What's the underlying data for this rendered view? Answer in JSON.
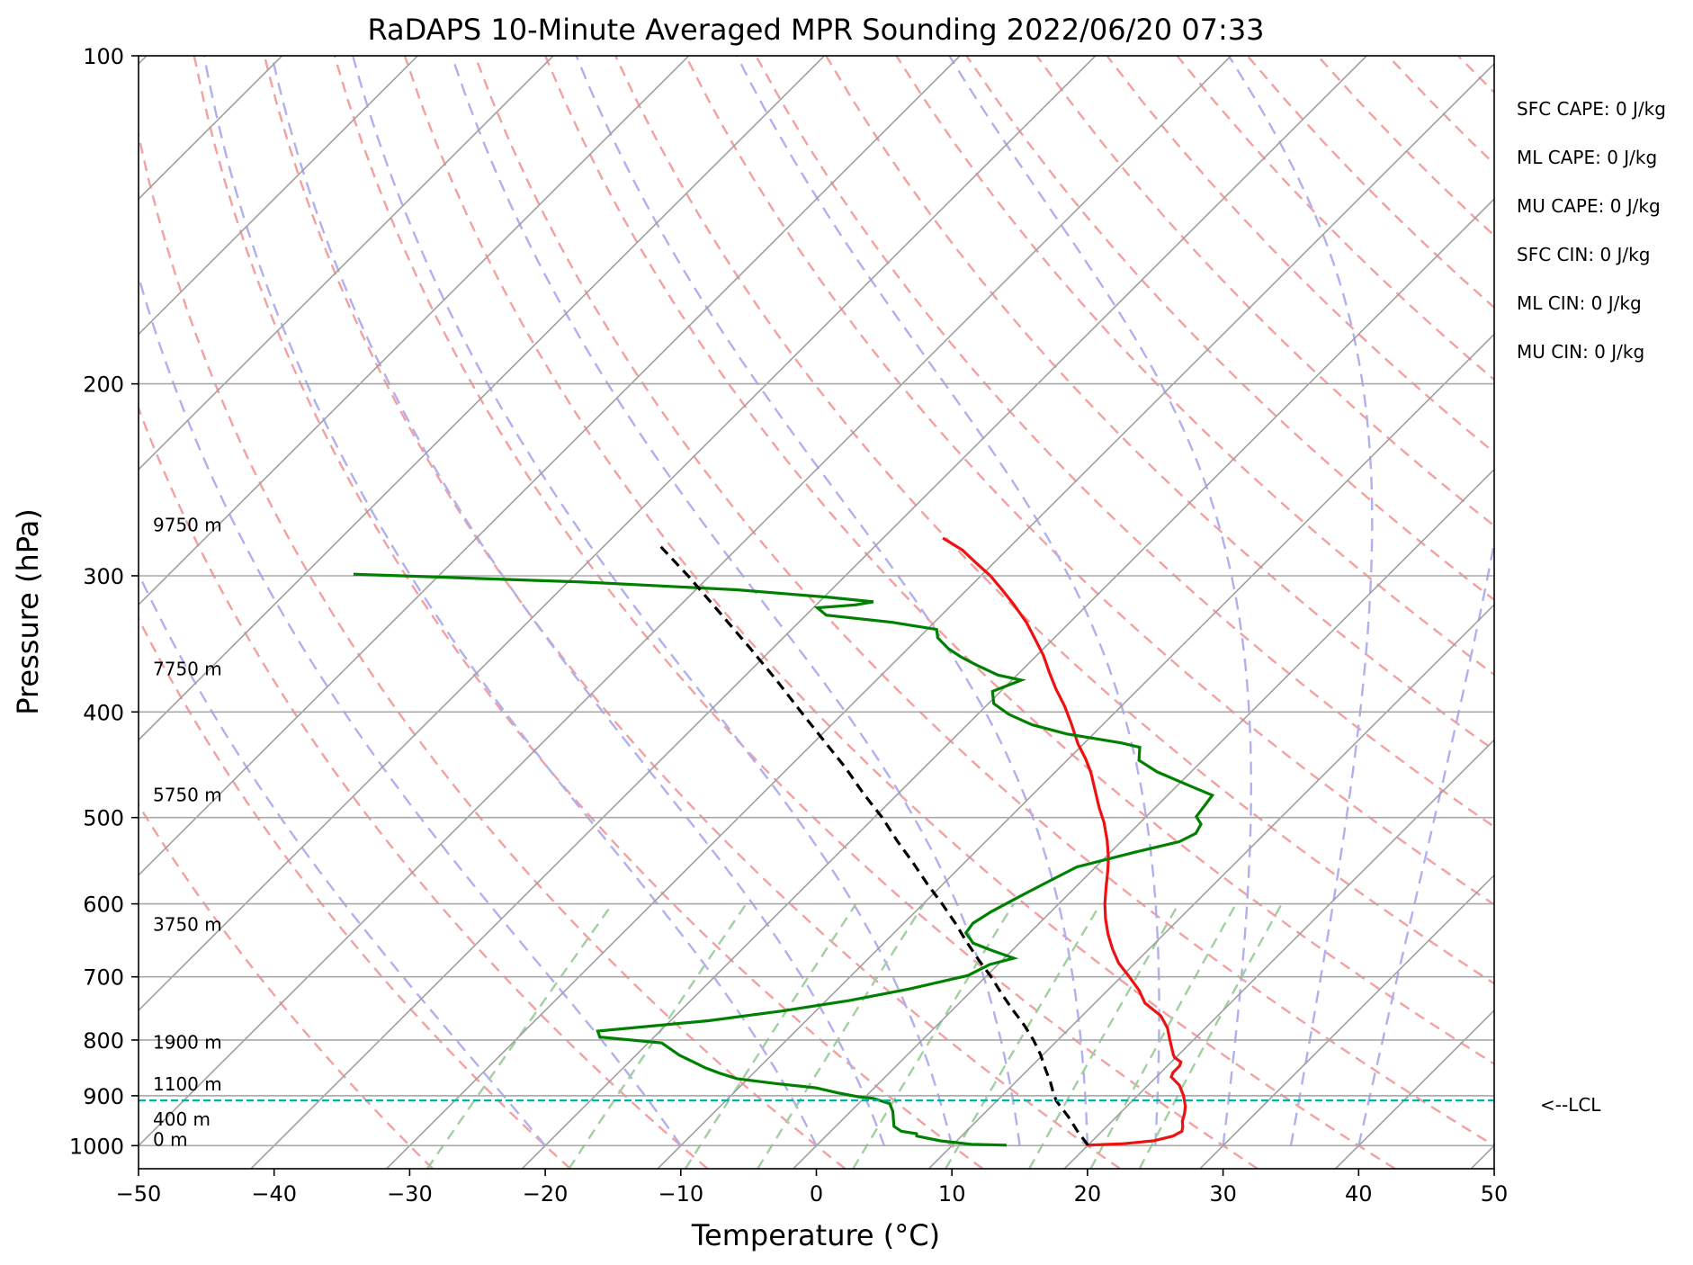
{
  "chart_data": {
    "type": "line",
    "subtype": "skew-T log-P diagram",
    "title": "RaDAPS 10-Minute Averaged MPR Sounding 2022/06/20 07:33",
    "xlabel": "Temperature (°C)",
    "ylabel": "Pressure (hPa)",
    "xlim": [
      -50,
      50
    ],
    "ylim": [
      1050,
      100
    ],
    "y_scale": "log",
    "x_ticks": [
      "−50",
      "−40",
      "−30",
      "−20",
      "−10",
      "0",
      "10",
      "20",
      "30",
      "40",
      "50"
    ],
    "y_ticks": [
      {
        "p": 100,
        "label": "100"
      },
      {
        "p": 200,
        "label": "200"
      },
      {
        "p": 300,
        "label": "300"
      },
      {
        "p": 400,
        "label": "400"
      },
      {
        "p": 500,
        "label": "500"
      },
      {
        "p": 600,
        "label": "600"
      },
      {
        "p": 700,
        "label": "700"
      },
      {
        "p": 800,
        "label": "800"
      },
      {
        "p": 900,
        "label": "900"
      },
      {
        "p": 1000,
        "label": "1000"
      }
    ],
    "grid": true,
    "background_lines": {
      "isotherms_color": "#a0a0a0",
      "dry_adiabats_color": "#f4a0a0",
      "moist_adiabats_color": "#b0b0f0",
      "mixing_ratio_color": "#a0d0a0"
    },
    "series": [
      {
        "key": "temperature",
        "color": "#ee1111",
        "points": [
          [
            20.0,
            999
          ],
          [
            22.5,
            996
          ],
          [
            24.5,
            990
          ],
          [
            25.6,
            980
          ],
          [
            25.9,
            970
          ],
          [
            25.6,
            960
          ],
          [
            25.2,
            950
          ],
          [
            24.8,
            935
          ],
          [
            24.3,
            920
          ],
          [
            23.4,
            900
          ],
          [
            22.3,
            880
          ],
          [
            21.1,
            865
          ],
          [
            20.9,
            857
          ],
          [
            20.9,
            845
          ],
          [
            20.7,
            838
          ],
          [
            19.9,
            830
          ],
          [
            19.6,
            825
          ],
          [
            18.8,
            810
          ],
          [
            18.0,
            795
          ],
          [
            17.2,
            780
          ],
          [
            15.8,
            760
          ],
          [
            13.7,
            740
          ],
          [
            12.3,
            720
          ],
          [
            10.6,
            700
          ],
          [
            8.8,
            680
          ],
          [
            7.3,
            660
          ],
          [
            5.9,
            640
          ],
          [
            4.6,
            620
          ],
          [
            3.4,
            600
          ],
          [
            2.3,
            580
          ],
          [
            1.2,
            560
          ],
          [
            0.3,
            545
          ],
          [
            -1.1,
            525
          ],
          [
            -2.7,
            505
          ],
          [
            -4.1,
            490
          ],
          [
            -5.9,
            470
          ],
          [
            -7.3,
            455
          ],
          [
            -8.7,
            442
          ],
          [
            -10.4,
            428
          ],
          [
            -12.4,
            410
          ],
          [
            -14.2,
            395
          ],
          [
            -16.1,
            381
          ],
          [
            -17.8,
            368
          ],
          [
            -19.5,
            355
          ],
          [
            -21.0,
            345
          ],
          [
            -23.2,
            331
          ],
          [
            -25.6,
            318
          ],
          [
            -27.4,
            309
          ],
          [
            -29.3,
            300
          ],
          [
            -31.3,
            292
          ],
          [
            -33.3,
            284
          ],
          [
            -35.6,
            277
          ]
        ]
      },
      {
        "key": "dewpoint",
        "color": "#008000",
        "points": [
          [
            14.0,
            999
          ],
          [
            11.3,
            997
          ],
          [
            8.8,
            990
          ],
          [
            6.7,
            980
          ],
          [
            6.5,
            975
          ],
          [
            5.2,
            970
          ],
          [
            4.3,
            960
          ],
          [
            3.7,
            945
          ],
          [
            3.1,
            930
          ],
          [
            2.3,
            915
          ],
          [
            0.7,
            905
          ],
          [
            -0.5,
            902
          ],
          [
            -2.2,
            895
          ],
          [
            -4.3,
            885
          ],
          [
            -7.6,
            877
          ],
          [
            -10.8,
            868
          ],
          [
            -12.5,
            858
          ],
          [
            -14.0,
            848
          ],
          [
            -15.0,
            840
          ],
          [
            -16.8,
            826
          ],
          [
            -19.0,
            805
          ],
          [
            -24.0,
            795
          ],
          [
            -24.6,
            785
          ],
          [
            -17.2,
            768
          ],
          [
            -12.4,
            752
          ],
          [
            -8.3,
            736
          ],
          [
            -4.7,
            718
          ],
          [
            -1.4,
            698
          ],
          [
            -0.6,
            682
          ],
          [
            0.7,
            673
          ],
          [
            -1.7,
            661
          ],
          [
            -3.4,
            652
          ],
          [
            -4.7,
            638
          ],
          [
            -4.9,
            625
          ],
          [
            -4.4,
            610
          ],
          [
            -3.4,
            590
          ],
          [
            -2.4,
            572
          ],
          [
            -1.4,
            555
          ],
          [
            1.8,
            538
          ],
          [
            4.3,
            526
          ],
          [
            4.9,
            517
          ],
          [
            4.6,
            507
          ],
          [
            3.7,
            499
          ],
          [
            3.5,
            488
          ],
          [
            3.3,
            477
          ],
          [
            0.8,
            467
          ],
          [
            -2.5,
            454
          ],
          [
            -4.7,
            443
          ],
          [
            -5.6,
            431
          ],
          [
            -7.3,
            427
          ],
          [
            -12.0,
            419
          ],
          [
            -15.2,
            411
          ],
          [
            -17.7,
            402
          ],
          [
            -19.6,
            393
          ],
          [
            -20.6,
            383
          ],
          [
            -19.3,
            374
          ],
          [
            -21.4,
            370
          ],
          [
            -23.8,
            362
          ],
          [
            -25.5,
            356
          ],
          [
            -27.0,
            350
          ],
          [
            -28.6,
            342
          ],
          [
            -29.3,
            336
          ],
          [
            -33.1,
            331
          ],
          [
            -38.5,
            326
          ],
          [
            -39.7,
            321
          ],
          [
            -37.1,
            319
          ],
          [
            -36.0,
            317
          ],
          [
            -39.6,
            314
          ],
          [
            -47.0,
            309
          ],
          [
            -58.9,
            304
          ],
          [
            -76.4,
            299
          ]
        ]
      },
      {
        "key": "parcel",
        "color": "#000000",
        "points": [
          [
            20.0,
            999
          ],
          [
            18.2,
            970
          ],
          [
            16.4,
            940
          ],
          [
            14.4,
            910
          ],
          [
            13.6,
            895
          ],
          [
            12.6,
            875
          ],
          [
            11.2,
            850
          ],
          [
            9.8,
            825
          ],
          [
            8.2,
            800
          ],
          [
            6.4,
            775
          ],
          [
            4.4,
            750
          ],
          [
            2.4,
            725
          ],
          [
            0.4,
            700
          ],
          [
            -1.8,
            675
          ],
          [
            -4.0,
            650
          ],
          [
            -6.2,
            625
          ],
          [
            -8.6,
            600
          ],
          [
            -11.2,
            575
          ],
          [
            -13.8,
            550
          ],
          [
            -16.6,
            525
          ],
          [
            -19.4,
            500
          ],
          [
            -22.6,
            475
          ],
          [
            -25.8,
            450
          ],
          [
            -29.4,
            425
          ],
          [
            -33.2,
            400
          ],
          [
            -37.2,
            375
          ],
          [
            -41.6,
            350
          ],
          [
            -46.4,
            325
          ],
          [
            -51.6,
            300
          ],
          [
            -55.8,
            282
          ]
        ]
      }
    ],
    "lcl": {
      "pressure": 909,
      "label": "<--LCL",
      "color": "#00b0b0"
    },
    "height_labels": [
      {
        "text": "0 m",
        "p": 1000
      },
      {
        "text": "400 m",
        "p": 958
      },
      {
        "text": "1100 m",
        "p": 890
      },
      {
        "text": "1900 m",
        "p": 815
      },
      {
        "text": "3750 m",
        "p": 635
      },
      {
        "text": "5750 m",
        "p": 483
      },
      {
        "text": "7750 m",
        "p": 370
      },
      {
        "text": "9750 m",
        "p": 273
      }
    ],
    "annotations": [
      "SFC CAPE: 0 J/kg",
      "ML CAPE: 0 J/kg",
      "MU CAPE: 0 J/kg",
      "SFC CIN: 0 J/kg",
      "ML CIN: 0 J/kg",
      "MU CIN: 0 J/kg"
    ]
  }
}
